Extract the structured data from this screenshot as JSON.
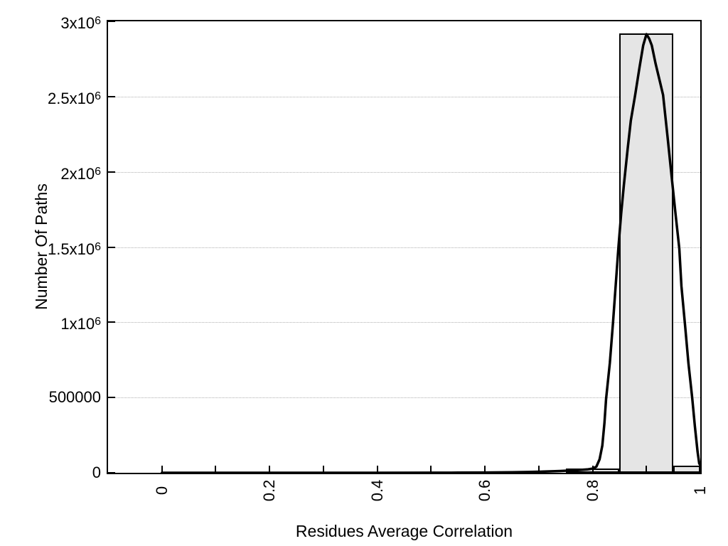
{
  "page": {
    "background": "#ffffff"
  },
  "chart_data": {
    "type": "bar",
    "subtype": "histogram_with_fit_curve",
    "title": "",
    "xlabel": "Residues Average Correlation",
    "ylabel": "Number Of Paths",
    "xlim": [
      -0.1,
      1.0
    ],
    "ylim": [
      0,
      3000000
    ],
    "grid": "horizontal-dotted",
    "legend": "none",
    "x_ticks": [
      {
        "v": 0.0,
        "label": "0"
      },
      {
        "v": 0.1,
        "label": ""
      },
      {
        "v": 0.2,
        "label": "0.2"
      },
      {
        "v": 0.3,
        "label": ""
      },
      {
        "v": 0.4,
        "label": "0.4"
      },
      {
        "v": 0.5,
        "label": ""
      },
      {
        "v": 0.6,
        "label": "0.6"
      },
      {
        "v": 0.7,
        "label": ""
      },
      {
        "v": 0.8,
        "label": "0.8"
      },
      {
        "v": 0.9,
        "label": ""
      },
      {
        "v": 1.0,
        "label": "1"
      }
    ],
    "y_ticks": [
      {
        "v": 0,
        "base": "0",
        "sup": ""
      },
      {
        "v": 500000,
        "base": "500000",
        "sup": ""
      },
      {
        "v": 1000000,
        "base": "1x10",
        "sup": "6"
      },
      {
        "v": 1500000,
        "base": "1.5x10",
        "sup": "6"
      },
      {
        "v": 2000000,
        "base": "2x10",
        "sup": "6"
      },
      {
        "v": 2500000,
        "base": "2.5x10",
        "sup": "6"
      },
      {
        "v": 3000000,
        "base": "3x10",
        "sup": "6"
      }
    ],
    "grid_horizontal": [
      500000,
      1000000,
      1500000,
      2000000,
      2500000
    ],
    "bars": [
      {
        "x0": 0.75,
        "x1": 0.85,
        "value": 30000
      },
      {
        "x0": 0.85,
        "x1": 0.95,
        "value": 2920000
      },
      {
        "x0": 0.95,
        "x1": 1.05,
        "value": 47000
      }
    ],
    "curve": [
      [
        0.0,
        0
      ],
      [
        0.1,
        0
      ],
      [
        0.2,
        0
      ],
      [
        0.3,
        0
      ],
      [
        0.4,
        0
      ],
      [
        0.5,
        500
      ],
      [
        0.55,
        1000
      ],
      [
        0.6,
        2000
      ],
      [
        0.65,
        3500
      ],
      [
        0.68,
        5000
      ],
      [
        0.71,
        8000
      ],
      [
        0.74,
        12000
      ],
      [
        0.77,
        17000
      ],
      [
        0.79,
        22000
      ],
      [
        0.8,
        28000
      ],
      [
        0.807,
        40000
      ],
      [
        0.813,
        90000
      ],
      [
        0.818,
        180000
      ],
      [
        0.822,
        330000
      ],
      [
        0.825,
        490000
      ],
      [
        0.832,
        730000
      ],
      [
        0.838,
        1000000
      ],
      [
        0.843,
        1250000
      ],
      [
        0.848,
        1500000
      ],
      [
        0.853,
        1720000
      ],
      [
        0.858,
        1910000
      ],
      [
        0.865,
        2150000
      ],
      [
        0.871,
        2340000
      ],
      [
        0.879,
        2510000
      ],
      [
        0.887,
        2690000
      ],
      [
        0.894,
        2840000
      ],
      [
        0.9,
        2915000
      ],
      [
        0.905,
        2885000
      ],
      [
        0.91,
        2840000
      ],
      [
        0.917,
        2720000
      ],
      [
        0.925,
        2600000
      ],
      [
        0.931,
        2510000
      ],
      [
        0.939,
        2240000
      ],
      [
        0.947,
        1960000
      ],
      [
        0.954,
        1720000
      ],
      [
        0.961,
        1490000
      ],
      [
        0.965,
        1240000
      ],
      [
        0.972,
        970000
      ],
      [
        0.978,
        730000
      ],
      [
        0.985,
        500000
      ],
      [
        0.99,
        310000
      ],
      [
        0.995,
        140000
      ],
      [
        0.998,
        62000
      ],
      [
        1.0,
        50000
      ]
    ],
    "colors": {
      "bar_fill": "#e5e5e5",
      "bar_border": "#000000",
      "curve": "#000000",
      "grid": "#b0b0b0",
      "axis": "#000000",
      "text": "#000000"
    }
  }
}
